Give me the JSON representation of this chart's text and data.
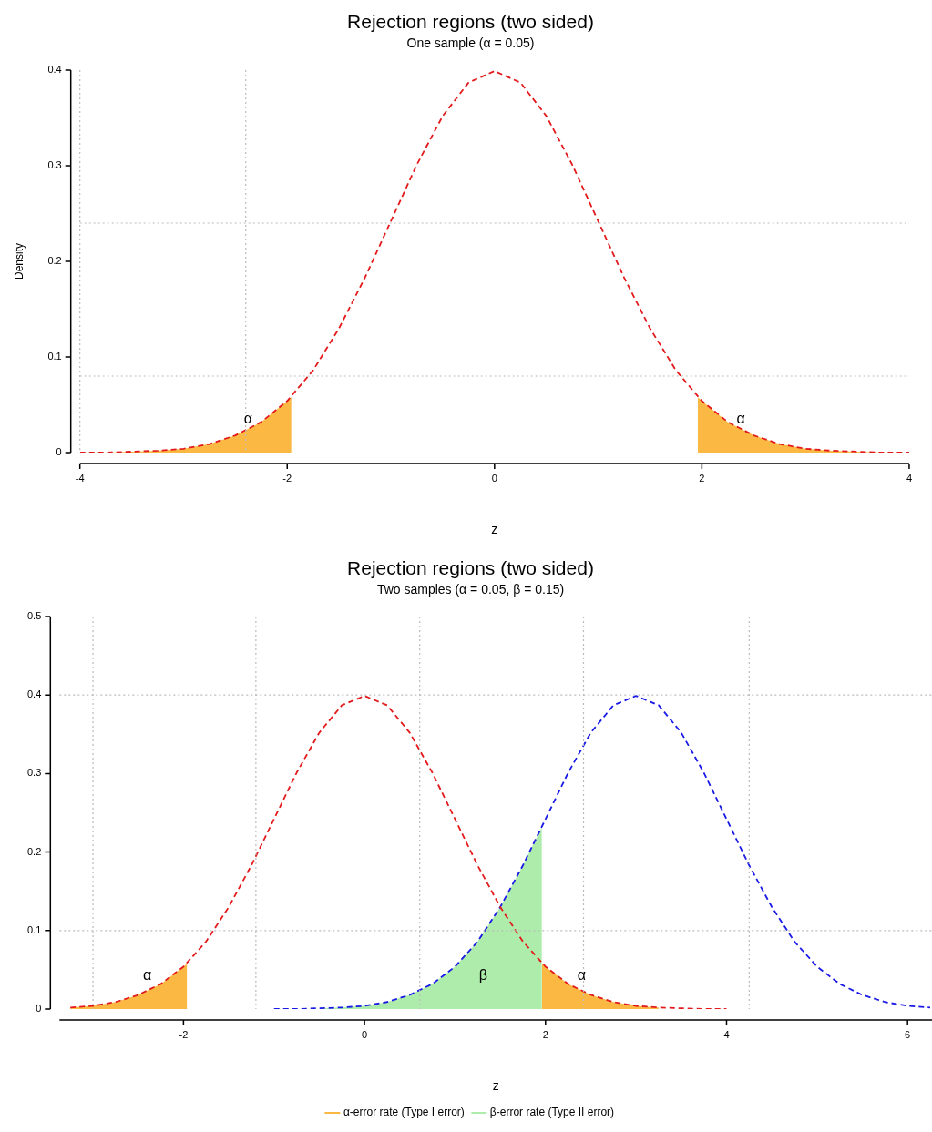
{
  "chart_data": [
    {
      "type": "line",
      "title": "Rejection regions (two sided)",
      "subtitle": "One sample (α = 0.05)",
      "xlabel": "z",
      "ylabel": "Density",
      "xlim": [
        -4,
        4
      ],
      "xticks": [
        -4,
        -2,
        0,
        2,
        4
      ],
      "ylim": [
        0,
        0.4
      ],
      "yticks": [
        0,
        0.1,
        0.2,
        0.3,
        0.4
      ],
      "grid": false,
      "legend": false,
      "marker": "none",
      "series": [
        {
          "type": "line",
          "color": "#e31a1c",
          "line_style": "dashed",
          "x": [
            -4,
            -3.75,
            -3.5,
            -3.25,
            -3,
            -2.75,
            -2.5,
            -2.25,
            -2,
            -1.75,
            -1.5,
            -1.25,
            -1,
            -0.75,
            -0.5,
            -0.25,
            0,
            0.25,
            0.5,
            0.75,
            1,
            1.25,
            1.5,
            1.75,
            2,
            2.25,
            2.5,
            2.75,
            3,
            3.25,
            3.5,
            3.75,
            4
          ],
          "values": [
            0,
            0,
            0.001,
            0.002,
            0.004,
            0.009,
            0.018,
            0.032,
            0.054,
            0.086,
            0.13,
            0.183,
            0.242,
            0.301,
            0.352,
            0.387,
            0.399,
            0.387,
            0.352,
            0.301,
            0.242,
            0.183,
            0.13,
            0.086,
            0.054,
            0.032,
            0.018,
            0.009,
            0.004,
            0.002,
            0.001,
            0,
            0
          ]
        },
        {
          "type": "area",
          "color": "#fbb944",
          "x": [
            -4,
            -3.75,
            -3.5,
            -3.25,
            -3,
            -2.75,
            -2.5,
            -2.25,
            -2,
            -1.96,
            0,
            1.96,
            2,
            2.25,
            2.5,
            2.75,
            3,
            3.25,
            3.5,
            3.75,
            4
          ],
          "values": [
            0,
            0,
            0.001,
            0.002,
            0.004,
            0.009,
            0.018,
            0.032,
            0.054,
            0.058,
            null,
            0.058,
            0.054,
            0.032,
            0.018,
            0.009,
            0.004,
            0.002,
            0.001,
            0,
            0
          ]
        }
      ],
      "ref_lines": [
        {
          "axis": "x",
          "value": -4,
          "color": "#bbbbbb",
          "line_style": "dotted"
        },
        {
          "axis": "x",
          "value": -2.4,
          "color": "#bbbbbb",
          "line_style": "dotted"
        },
        {
          "axis": "y",
          "value": 0.08,
          "color": "#bbbbbb",
          "line_style": "dotted"
        },
        {
          "axis": "y",
          "value": 0.24,
          "color": "#bbbbbb",
          "line_style": "dotted"
        }
      ],
      "annotations": [
        "α",
        "α"
      ]
    },
    {
      "type": "line",
      "title": "Rejection regions (two sided)",
      "subtitle": "Two samples (α = 0.05, β = 0.15)",
      "xlabel": "z",
      "xlim": [
        -3.37,
        6.27
      ],
      "xticks": [
        -2,
        0,
        2,
        4,
        6
      ],
      "ylim": [
        0,
        0.5
      ],
      "yticks": [
        0,
        0.1,
        0.2,
        0.3,
        0.4,
        0.5
      ],
      "grid": false,
      "legend": "bottom",
      "marker": "none",
      "series": [
        {
          "type": "line",
          "color": "#e31a1c",
          "line_style": "dashed",
          "x": [
            -3.25,
            -3,
            -2.75,
            -2.5,
            -2.25,
            -2,
            -1.75,
            -1.5,
            -1.25,
            -1,
            -0.75,
            -0.5,
            -0.25,
            0,
            0.25,
            0.5,
            0.75,
            1,
            1.25,
            1.5,
            1.75,
            2,
            2.25,
            2.5,
            2.75,
            3,
            3.25,
            3.5,
            3.75,
            4
          ],
          "values": [
            0.002,
            0.004,
            0.009,
            0.018,
            0.032,
            0.054,
            0.086,
            0.13,
            0.183,
            0.242,
            0.301,
            0.352,
            0.387,
            0.399,
            0.387,
            0.352,
            0.301,
            0.242,
            0.183,
            0.13,
            0.086,
            0.054,
            0.032,
            0.018,
            0.009,
            0.004,
            0.002,
            0.001,
            0,
            0
          ]
        },
        {
          "type": "line",
          "color": "#1a1ae6",
          "line_style": "dashed",
          "x": [
            -1,
            -0.75,
            -0.5,
            -0.25,
            0,
            0.25,
            0.5,
            0.75,
            1,
            1.25,
            1.5,
            1.75,
            2,
            2.25,
            2.5,
            2.75,
            3,
            3.25,
            3.5,
            3.75,
            4,
            4.25,
            4.5,
            4.75,
            5,
            5.25,
            5.5,
            5.75,
            6,
            6.25
          ],
          "values": [
            0,
            0,
            0.001,
            0.002,
            0.004,
            0.009,
            0.018,
            0.032,
            0.054,
            0.086,
            0.13,
            0.183,
            0.242,
            0.301,
            0.352,
            0.387,
            0.399,
            0.387,
            0.352,
            0.301,
            0.242,
            0.183,
            0.13,
            0.086,
            0.054,
            0.032,
            0.018,
            0.009,
            0.004,
            0.002
          ]
        },
        {
          "type": "area",
          "name": "α-error rate (Type I error)",
          "color": "#fbb944",
          "x": [
            -3.25,
            -3,
            -2.75,
            -2.5,
            -2.25,
            -2,
            -1.96,
            0,
            1.96,
            2,
            2.25,
            2.5,
            2.75,
            3,
            3.25
          ],
          "values": [
            0.002,
            0.004,
            0.009,
            0.018,
            0.032,
            0.054,
            0.058,
            null,
            0.058,
            0.054,
            0.032,
            0.018,
            0.009,
            0.004,
            0.002
          ]
        },
        {
          "type": "area",
          "name": "β-error rate (Type II error)",
          "color": "#adecaa",
          "x": [
            -0.5,
            -0.25,
            0,
            0.25,
            0.5,
            0.75,
            1,
            1.25,
            1.5,
            1.75,
            1.96
          ],
          "values": [
            0.001,
            0.002,
            0.004,
            0.009,
            0.018,
            0.032,
            0.054,
            0.086,
            0.13,
            0.183,
            0.232
          ]
        }
      ],
      "ref_lines": [
        {
          "axis": "x",
          "value": -3,
          "color": "#bbbbbb",
          "line_style": "dotted"
        },
        {
          "axis": "x",
          "value": -1.2,
          "color": "#bbbbbb",
          "line_style": "dotted"
        },
        {
          "axis": "x",
          "value": 0.61,
          "color": "#bbbbbb",
          "line_style": "dotted"
        },
        {
          "axis": "x",
          "value": 2.42,
          "color": "#bbbbbb",
          "line_style": "dotted"
        },
        {
          "axis": "x",
          "value": 4.25,
          "color": "#bbbbbb",
          "line_style": "dotted"
        },
        {
          "axis": "y",
          "value": 0.1,
          "color": "#bbbbbb",
          "line_style": "dotted"
        },
        {
          "axis": "y",
          "value": 0.4,
          "color": "#bbbbbb",
          "line_style": "dotted"
        }
      ],
      "annotations": [
        "α",
        "β",
        "α"
      ]
    }
  ]
}
